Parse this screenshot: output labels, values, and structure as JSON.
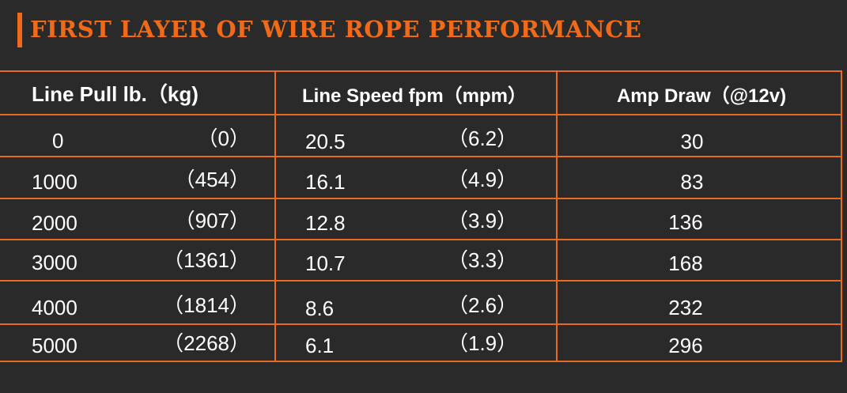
{
  "title": "FIRST LAYER OF WIRE ROPE PERFORMANCE",
  "colors": {
    "background": "#2a2a2a",
    "accent": "#f06a1a",
    "text": "#ffffff"
  },
  "table": {
    "headers": {
      "line_pull": "Line Pull lb.（kg)",
      "line_speed": "Line Speed fpm（mpm）",
      "amp_draw": "Amp Draw（@12v)"
    },
    "rows": [
      {
        "pull_lb": "0",
        "pull_kg": "（0）",
        "speed_fpm": "20.5",
        "speed_mpm": "（6.2）",
        "amp": "30"
      },
      {
        "pull_lb": "1000",
        "pull_kg": "（454）",
        "speed_fpm": "16.1",
        "speed_mpm": "（4.9）",
        "amp": "83"
      },
      {
        "pull_lb": "2000",
        "pull_kg": "（907）",
        "speed_fpm": "12.8",
        "speed_mpm": "（3.9）",
        "amp": "136"
      },
      {
        "pull_lb": "3000",
        "pull_kg": "（1361）",
        "speed_fpm": "10.7",
        "speed_mpm": "（3.3）",
        "amp": "168"
      },
      {
        "pull_lb": "4000",
        "pull_kg": "（1814）",
        "speed_fpm": "8.6",
        "speed_mpm": "（2.6）",
        "amp": "232"
      },
      {
        "pull_lb": "5000",
        "pull_kg": "（2268）",
        "speed_fpm": "6.1",
        "speed_mpm": "（1.9）",
        "amp": "296"
      }
    ]
  }
}
